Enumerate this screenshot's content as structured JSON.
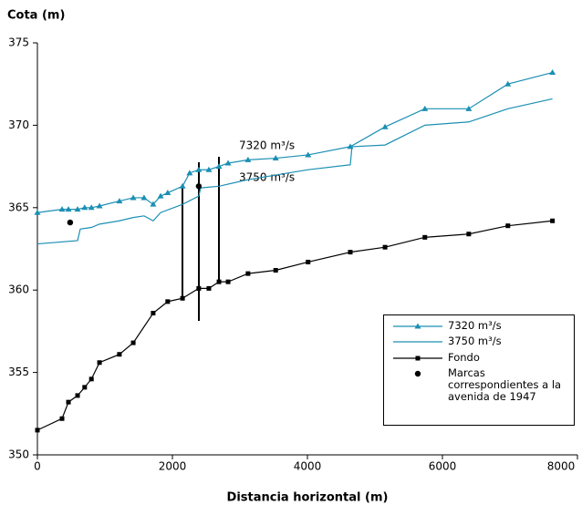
{
  "chart_data": {
    "type": "line",
    "y_label": "Cota (m)",
    "x_label": "Distancia horizontal (m)",
    "xlim": [
      0,
      8000
    ],
    "xticks": [
      0,
      2000,
      4000,
      6000,
      8000
    ],
    "ylim": [
      350,
      375
    ],
    "yticks": [
      350,
      355,
      360,
      365,
      370,
      375
    ],
    "annotations": [
      "7320 m³/s",
      "3750 m³/s"
    ],
    "series": [
      {
        "name": "7320 m³/s",
        "color": "#1b8fb3",
        "marker": "triangle",
        "line": true,
        "x": [
          0,
          365,
          460,
          595,
          700,
          800,
          920,
          1215,
          1420,
          1580,
          1715,
          1825,
          1930,
          2150,
          2255,
          2390,
          2540,
          2690,
          2825,
          3120,
          3530,
          4010,
          4635,
          5150,
          5740,
          6390,
          6970,
          7630
        ],
        "values": [
          364.7,
          364.9,
          364.9,
          364.9,
          365.0,
          365.0,
          365.1,
          365.4,
          365.6,
          365.6,
          365.2,
          365.7,
          365.9,
          366.3,
          367.1,
          367.3,
          367.3,
          367.5,
          367.7,
          367.9,
          368.0,
          368.2,
          368.7,
          369.9,
          371.0,
          371.0,
          372.5,
          373.2
        ]
      },
      {
        "name": "3750 m³/s",
        "color": "#1b8fb3",
        "marker": "none",
        "line": true,
        "x": [
          0,
          595,
          635,
          800,
          920,
          1215,
          1420,
          1580,
          1715,
          1825,
          2150,
          2390,
          2420,
          2690,
          3120,
          4010,
          4635,
          4660,
          5150,
          5740,
          6390,
          6970,
          7630
        ],
        "values": [
          362.8,
          363.0,
          363.7,
          363.8,
          364.0,
          364.2,
          364.4,
          364.5,
          364.2,
          364.7,
          365.2,
          365.7,
          366.2,
          366.3,
          366.7,
          367.3,
          367.6,
          368.7,
          368.8,
          370.0,
          370.2,
          371.0,
          371.6
        ]
      },
      {
        "name": "Fondo",
        "color": "#000000",
        "marker": "square",
        "line": true,
        "x": [
          0,
          365,
          460,
          595,
          700,
          800,
          920,
          1215,
          1420,
          1715,
          1930,
          2150,
          2390,
          2540,
          2690,
          2825,
          3120,
          3530,
          4010,
          4635,
          5150,
          5740,
          6390,
          6970,
          7630
        ],
        "values": [
          351.5,
          352.2,
          353.2,
          353.6,
          354.1,
          354.6,
          355.6,
          356.1,
          356.8,
          358.6,
          359.3,
          359.5,
          360.1,
          360.1,
          360.5,
          360.5,
          361.0,
          361.2,
          361.7,
          362.3,
          362.6,
          363.2,
          363.4,
          363.9,
          364.2
        ]
      },
      {
        "name": "Marcas correspondientes a la avenida de 1947",
        "color": "#000000",
        "marker": "circle",
        "line": false,
        "x": [
          485,
          2390
        ],
        "values": [
          364.1,
          366.3
        ]
      }
    ]
  }
}
